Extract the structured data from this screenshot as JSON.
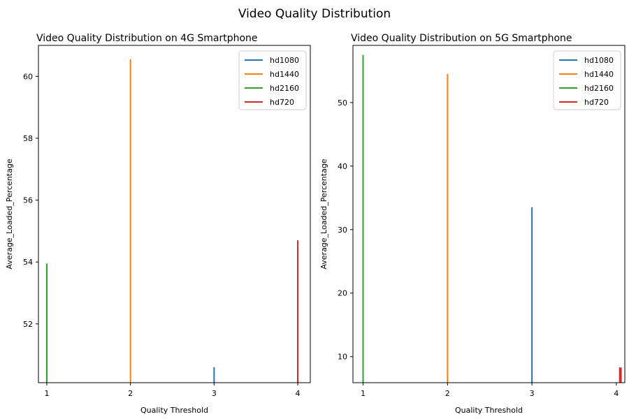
{
  "figure": {
    "suptitle": "Video Quality Distribution"
  },
  "chart_data": [
    {
      "type": "bar",
      "title": "Video Quality Distribution on 4G Smartphone",
      "xlabel": "Quality Threshold",
      "ylabel": "Average_Loaded_Percentage",
      "xlim": [
        0.9,
        4.15
      ],
      "ylim": [
        50.1,
        61.0
      ],
      "xticks": [
        1,
        2,
        3,
        4
      ],
      "yticks": [
        52,
        54,
        56,
        58,
        60
      ],
      "grid": false,
      "legend": "top-right",
      "series": [
        {
          "name": "hd1080",
          "color": "#1f77b4",
          "points": [
            {
              "x": 3,
              "y": 50.6
            }
          ]
        },
        {
          "name": "hd1440",
          "color": "#ff7f0e",
          "points": [
            {
              "x": 2,
              "y": 60.55
            }
          ]
        },
        {
          "name": "hd2160",
          "color": "#2ca02c",
          "points": [
            {
              "x": 1,
              "y": 53.95
            }
          ]
        },
        {
          "name": "hd720",
          "color": "#d62728",
          "points": [
            {
              "x": 4,
              "y": 54.7
            }
          ]
        }
      ]
    },
    {
      "type": "bar",
      "title": "Video Quality Distribution on 5G Smartphone",
      "xlabel": "Quality Threshold",
      "ylabel": "Average_Loaded_Percentage",
      "xlim": [
        0.88,
        4.1
      ],
      "ylim": [
        5.9,
        59.0
      ],
      "xticks": [
        1,
        2,
        3,
        4
      ],
      "yticks": [
        10,
        20,
        30,
        40,
        50
      ],
      "grid": false,
      "legend": "top-right",
      "series": [
        {
          "name": "hd1080",
          "color": "#1f77b4",
          "points": [
            {
              "x": 3,
              "y": 33.5
            }
          ]
        },
        {
          "name": "hd1440",
          "color": "#ff7f0e",
          "points": [
            {
              "x": 2,
              "y": 54.5
            }
          ]
        },
        {
          "name": "hd2160",
          "color": "#2ca02c",
          "points": [
            {
              "x": 1,
              "y": 57.5
            }
          ]
        },
        {
          "name": "hd720",
          "color": "#d62728",
          "points": [
            {
              "x": 4.04,
              "y": 8.3
            },
            {
              "x": 4.055,
              "y": 8.3
            }
          ]
        }
      ]
    }
  ]
}
